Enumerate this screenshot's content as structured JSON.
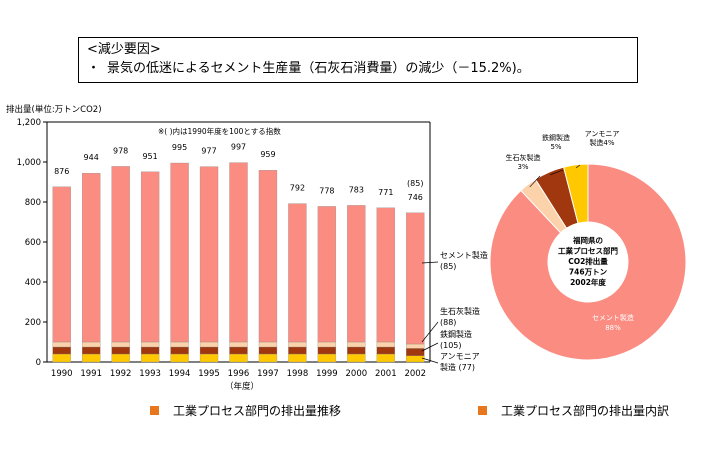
{
  "reasons": {
    "heading": "<減少要因>",
    "bullet": "・",
    "text": "景気の低迷によるセメント生産量（石灰石消費量）の減少（－15.2%)。"
  },
  "captions": {
    "left": "工業プロセス部門の排出量推移",
    "right": "工業プロセス部門の排出量内訳"
  },
  "colors": {
    "cement": "#fa8c82",
    "limestone": "#fcd2aa",
    "steel": "#a0370f",
    "ammonia": "#ffc800",
    "caption_marker": "#e8761c"
  },
  "chart_data": [
    {
      "type": "bar",
      "stacked": true,
      "ylabel": "排出量(単位:万トンCO2)",
      "xlabel": "（年度）",
      "note": "※( )内は1990年度を100とする指数",
      "ylim": [
        0,
        1200
      ],
      "yticks": [
        "0",
        "200",
        "400",
        "600",
        "800",
        "1,000",
        "1,200"
      ],
      "categories": [
        "1990",
        "1991",
        "1992",
        "1993",
        "1994",
        "1995",
        "1996",
        "1997",
        "1998",
        "1999",
        "2000",
        "2001",
        "2002"
      ],
      "totals": [
        876,
        944,
        978,
        951,
        995,
        977,
        997,
        959,
        792,
        778,
        783,
        771,
        746
      ],
      "total_labels": [
        "876",
        "944",
        "978",
        "951",
        "995",
        "977",
        "997",
        "959",
        "792",
        "778",
        "783",
        "771",
        "746"
      ],
      "index_label": "(85)",
      "series": [
        {
          "name": "セメント製造",
          "index": "(85)",
          "color": "#fa8c82",
          "values": [
            776,
            844,
            878,
            851,
            895,
            877,
            897,
            859,
            692,
            678,
            683,
            671,
            656
          ]
        },
        {
          "name": "生石灰製造",
          "index": "(88)",
          "color": "#fcd2aa",
          "values": [
            25,
            25,
            25,
            25,
            25,
            25,
            25,
            25,
            25,
            25,
            25,
            25,
            22
          ]
        },
        {
          "name": "鉄鋼製造",
          "index": "(105)",
          "color": "#a0370f",
          "values": [
            35,
            35,
            35,
            35,
            35,
            35,
            35,
            35,
            35,
            35,
            35,
            35,
            37
          ]
        },
        {
          "name": "アンモニア製造",
          "index": "(77)",
          "color": "#ffc800",
          "values": [
            40,
            40,
            40,
            40,
            40,
            40,
            40,
            40,
            40,
            40,
            40,
            40,
            31
          ]
        }
      ],
      "legend_labels": [
        {
          "line1": "セメント製造",
          "line2": "(85)"
        },
        {
          "line1": "生石灰製造",
          "line2": "(88)"
        },
        {
          "line1": "鉄鋼製造",
          "line2": "(105)"
        },
        {
          "line1": "アンモニア",
          "line2": "製造 (77)"
        }
      ]
    },
    {
      "type": "pie",
      "donut": true,
      "center_text": [
        "福岡県の",
        "工業プロセス部門",
        "CO2排出量",
        "746万トン",
        "2002年度"
      ],
      "slices": [
        {
          "name": "セメント製造",
          "percent": 88,
          "color": "#fa8c82",
          "label_lines": [
            "セメント製造",
            "88%"
          ]
        },
        {
          "name": "生石灰製造",
          "percent": 3,
          "color": "#fcd2aa",
          "label_lines": [
            "生石灰製造",
            "3%"
          ]
        },
        {
          "name": "鉄鋼製造",
          "percent": 5,
          "color": "#a0370f",
          "label_lines": [
            "鉄鋼製造",
            "5%"
          ]
        },
        {
          "name": "アンモニア製造",
          "percent": 4,
          "color": "#ffc800",
          "label_lines": [
            "アンモニア",
            "製造4%"
          ]
        }
      ]
    }
  ]
}
